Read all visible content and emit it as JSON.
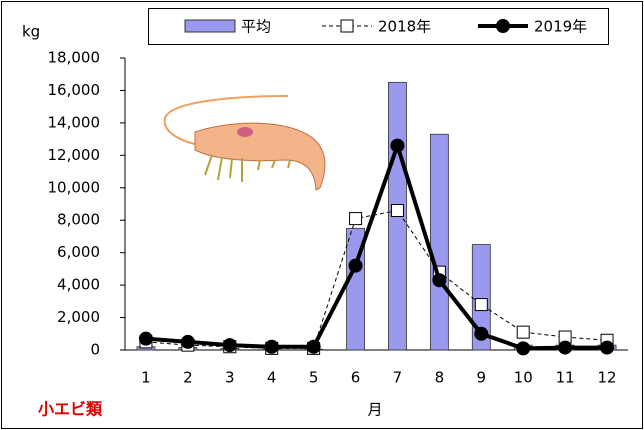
{
  "chart_data": {
    "type": "bar",
    "y_label": "kg",
    "x_label": "月",
    "annotation": "小エビ類",
    "categories": [
      "1",
      "2",
      "3",
      "4",
      "5",
      "6",
      "7",
      "8",
      "9",
      "10",
      "11",
      "12"
    ],
    "series": [
      {
        "name": "平均",
        "type": "bar",
        "color": "#9999ee",
        "values": [
          200,
          150,
          100,
          50,
          50,
          7500,
          16500,
          13300,
          6500,
          300,
          300,
          300
        ]
      },
      {
        "name": "2018年",
        "type": "line",
        "color": "#000000",
        "line_style": "dashed",
        "marker": "square",
        "values": [
          500,
          300,
          200,
          100,
          100,
          8100,
          8600,
          4800,
          2800,
          1100,
          800,
          600
        ]
      },
      {
        "name": "2019年",
        "type": "line",
        "color": "#000000",
        "line_style": "solid",
        "marker": "circle",
        "values": [
          700,
          500,
          300,
          200,
          200,
          5200,
          12600,
          4300,
          1000,
          100,
          150,
          150
        ]
      }
    ],
    "ylim": [
      0,
      18000
    ],
    "yticks": [
      0,
      {
        "value": 2000,
        "label": "2,000"
      },
      {
        "value": 4000,
        "label": "4,000"
      },
      {
        "value": 6000,
        "label": "6,000"
      },
      {
        "value": 8000,
        "label": "8,000"
      },
      {
        "value": 10000,
        "label": "10,000"
      },
      {
        "value": 12000,
        "label": "12,000"
      },
      {
        "value": 14000,
        "label": "14,000"
      },
      {
        "value": 16000,
        "label": "16,000"
      },
      {
        "value": 18000,
        "label": "18,000"
      }
    ]
  }
}
